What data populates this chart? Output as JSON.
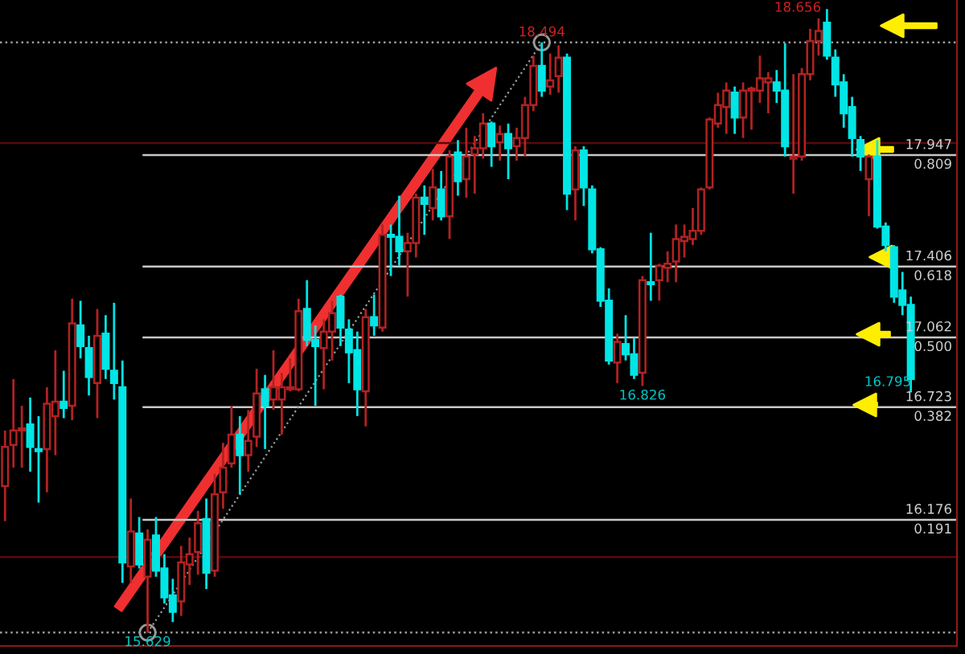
{
  "chart_data": {
    "type": "candlestick",
    "categories": [
      null,
      null,
      null,
      null,
      null,
      null,
      null,
      null,
      null,
      null,
      null,
      null,
      null,
      null,
      null,
      null,
      null,
      null,
      null,
      null,
      null,
      null,
      null,
      null,
      null,
      null,
      null,
      null,
      null,
      null,
      null,
      null,
      null,
      null,
      null,
      null,
      null,
      null,
      null,
      null,
      null,
      null,
      null,
      null,
      null,
      null,
      null,
      null,
      null,
      null,
      null,
      null,
      null,
      null,
      null,
      null,
      null,
      null,
      null,
      null,
      null,
      null,
      null,
      null,
      null,
      null,
      null,
      null,
      null,
      null,
      null,
      null,
      null,
      null,
      null,
      null,
      null,
      null,
      null,
      null,
      null,
      null,
      null,
      null,
      null,
      null,
      null,
      null,
      null,
      null,
      null,
      null,
      null,
      null,
      null,
      null,
      null,
      null,
      null,
      null,
      null,
      null,
      null,
      null,
      null,
      null,
      null,
      null,
      null
    ],
    "ohlc": [
      [
        16.34,
        16.61,
        16.17,
        16.53
      ],
      [
        16.54,
        16.86,
        16.43,
        16.61
      ],
      [
        16.61,
        16.73,
        16.43,
        16.62
      ],
      [
        16.64,
        16.77,
        16.41,
        16.53
      ],
      [
        16.52,
        16.68,
        16.26,
        16.51
      ],
      [
        16.52,
        16.82,
        16.31,
        16.74
      ],
      [
        16.68,
        17.0,
        16.49,
        16.75
      ],
      [
        16.75,
        16.9,
        16.67,
        16.72
      ],
      [
        16.73,
        17.25,
        16.66,
        17.13
      ],
      [
        17.12,
        17.24,
        16.96,
        17.02
      ],
      [
        17.01,
        17.07,
        16.78,
        16.87
      ],
      [
        16.84,
        17.2,
        16.67,
        17.07
      ],
      [
        17.08,
        17.17,
        16.86,
        16.91
      ],
      [
        16.9,
        17.23,
        16.76,
        16.84
      ],
      [
        16.82,
        16.95,
        15.87,
        15.97
      ],
      [
        15.95,
        16.28,
        15.87,
        16.12
      ],
      [
        16.11,
        16.19,
        15.94,
        15.96
      ],
      [
        15.9,
        16.13,
        15.629,
        16.08
      ],
      [
        16.1,
        16.19,
        15.9,
        15.93
      ],
      [
        15.94,
        16.01,
        15.77,
        15.8
      ],
      [
        15.81,
        15.89,
        15.68,
        15.73
      ],
      [
        15.78,
        16.05,
        15.71,
        15.97
      ],
      [
        15.96,
        16.09,
        15.86,
        16.01
      ],
      [
        16.02,
        16.22,
        15.91,
        16.16
      ],
      [
        16.18,
        16.28,
        15.84,
        15.92
      ],
      [
        15.93,
        16.4,
        15.9,
        16.3
      ],
      [
        16.31,
        16.55,
        16.23,
        16.43
      ],
      [
        16.45,
        16.73,
        16.43,
        16.59
      ],
      [
        16.59,
        16.68,
        16.3,
        16.49
      ],
      [
        16.49,
        16.71,
        16.41,
        16.56
      ],
      [
        16.58,
        16.91,
        16.53,
        16.79
      ],
      [
        16.81,
        16.88,
        16.52,
        16.73
      ],
      [
        16.76,
        17.0,
        16.71,
        16.82
      ],
      [
        16.76,
        16.89,
        16.59,
        16.82
      ],
      [
        16.81,
        16.96,
        16.8,
        16.82
      ],
      [
        16.81,
        17.25,
        16.8,
        17.19
      ],
      [
        17.2,
        17.34,
        17.02,
        17.05
      ],
      [
        17.05,
        17.12,
        16.73,
        17.02
      ],
      [
        17.01,
        17.15,
        16.81,
        17.09
      ],
      [
        17.09,
        17.24,
        16.95,
        17.18
      ],
      [
        17.26,
        17.27,
        17.02,
        17.11
      ],
      [
        17.1,
        17.15,
        16.84,
        16.99
      ],
      [
        17.0,
        17.09,
        16.68,
        16.81
      ],
      [
        16.8,
        17.2,
        16.63,
        17.16
      ],
      [
        17.16,
        17.27,
        17.07,
        17.12
      ],
      [
        17.11,
        17.61,
        17.09,
        17.56
      ],
      [
        17.56,
        17.61,
        17.36,
        17.55
      ],
      [
        17.55,
        17.75,
        17.41,
        17.48
      ],
      [
        17.48,
        17.57,
        17.26,
        17.52
      ],
      [
        17.52,
        17.76,
        17.45,
        17.74
      ],
      [
        17.74,
        17.8,
        17.56,
        17.71
      ],
      [
        17.69,
        17.88,
        17.63,
        17.79
      ],
      [
        17.78,
        17.87,
        17.63,
        17.65
      ],
      [
        17.65,
        17.97,
        17.54,
        17.94
      ],
      [
        17.96,
        18.02,
        17.75,
        17.82
      ],
      [
        17.83,
        18.08,
        17.74,
        17.94
      ],
      [
        17.95,
        18.04,
        17.76,
        17.98
      ],
      [
        17.98,
        18.15,
        17.93,
        18.1
      ],
      [
        18.1,
        18.11,
        17.89,
        17.99
      ],
      [
        18.01,
        18.09,
        17.92,
        18.05
      ],
      [
        18.05,
        18.1,
        17.83,
        17.98
      ],
      [
        17.99,
        18.08,
        17.92,
        18.03
      ],
      [
        18.03,
        18.23,
        17.94,
        18.19
      ],
      [
        18.19,
        18.43,
        18.16,
        18.38
      ],
      [
        18.38,
        18.494,
        18.23,
        18.26
      ],
      [
        18.28,
        18.44,
        18.24,
        18.31
      ],
      [
        18.33,
        18.48,
        18.25,
        18.42
      ],
      [
        18.42,
        18.44,
        17.68,
        17.76
      ],
      [
        17.78,
        17.99,
        17.63,
        17.97
      ],
      [
        17.97,
        17.99,
        17.7,
        17.79
      ],
      [
        17.78,
        17.8,
        17.47,
        17.49
      ],
      [
        17.49,
        17.5,
        17.21,
        17.24
      ],
      [
        17.24,
        17.3,
        16.93,
        16.95
      ],
      [
        16.94,
        17.08,
        16.84,
        17.04
      ],
      [
        17.03,
        17.17,
        16.95,
        16.98
      ],
      [
        16.98,
        17.06,
        16.86,
        16.88
      ],
      [
        16.89,
        17.36,
        16.826,
        17.34
      ],
      [
        17.33,
        17.57,
        17.24,
        17.32
      ],
      [
        17.34,
        17.42,
        17.24,
        17.41
      ],
      [
        17.4,
        17.48,
        17.33,
        17.42
      ],
      [
        17.43,
        17.61,
        17.33,
        17.54
      ],
      [
        17.53,
        17.61,
        17.45,
        17.55
      ],
      [
        17.54,
        17.69,
        17.51,
        17.58
      ],
      [
        17.58,
        17.79,
        17.56,
        17.78
      ],
      [
        17.79,
        18.13,
        17.78,
        18.12
      ],
      [
        18.1,
        18.25,
        18.08,
        18.19
      ],
      [
        18.18,
        18.3,
        18.05,
        18.26
      ],
      [
        18.25,
        18.28,
        18.05,
        18.13
      ],
      [
        18.13,
        18.3,
        18.03,
        18.26
      ],
      [
        18.26,
        18.28,
        18.07,
        18.27
      ],
      [
        18.26,
        18.43,
        18.2,
        18.32
      ],
      [
        18.3,
        18.35,
        18.15,
        18.32
      ],
      [
        18.3,
        18.36,
        18.2,
        18.26
      ],
      [
        18.26,
        18.49,
        17.94,
        17.99
      ],
      [
        17.93,
        18.34,
        17.76,
        17.94
      ],
      [
        17.94,
        18.37,
        17.92,
        18.34
      ],
      [
        18.34,
        18.56,
        18.31,
        18.5
      ],
      [
        18.5,
        18.61,
        18.43,
        18.55
      ],
      [
        18.59,
        18.656,
        18.41,
        18.43
      ],
      [
        18.42,
        18.46,
        18.23,
        18.29
      ],
      [
        18.3,
        18.34,
        18.08,
        18.15
      ],
      [
        18.18,
        18.23,
        17.94,
        18.03
      ],
      [
        18.02,
        18.04,
        17.87,
        17.94
      ],
      [
        17.83,
        17.95,
        17.65,
        17.94
      ],
      [
        17.94,
        18.02,
        17.59,
        17.6
      ],
      [
        17.6,
        17.62,
        17.48,
        17.51
      ],
      [
        17.5,
        17.51,
        17.23,
        17.26
      ],
      [
        17.29,
        17.38,
        17.17,
        17.22
      ],
      [
        17.22,
        17.26,
        16.795,
        16.86
      ]
    ],
    "colors": [
      "#b22222",
      "#b22222",
      "#b22222",
      "#00e5e5",
      "#00e5e5",
      "#b22222",
      "#b22222",
      "#00e5e5",
      "#b22222",
      "#00e5e5",
      "#00e5e5",
      "#b22222",
      "#00e5e5",
      "#00e5e5",
      "#00e5e5",
      "#b22222",
      "#00e5e5",
      "#b22222",
      "#00e5e5",
      "#00e5e5",
      "#00e5e5",
      "#b22222",
      "#b22222",
      "#b22222",
      "#00e5e5",
      "#b22222",
      "#b22222",
      "#b22222",
      "#00e5e5",
      "#b22222",
      "#b22222",
      "#00e5e5",
      "#b22222",
      "#b22222",
      "#b22222",
      "#b22222",
      "#00e5e5",
      "#00e5e5",
      "#b22222",
      "#b22222",
      "#00e5e5",
      "#00e5e5",
      "#00e5e5",
      "#b22222",
      "#00e5e5",
      "#b22222",
      "#00e5e5",
      "#00e5e5",
      "#b22222",
      "#b22222",
      "#00e5e5",
      "#b22222",
      "#00e5e5",
      "#b22222",
      "#00e5e5",
      "#b22222",
      "#b22222",
      "#b22222",
      "#00e5e5",
      "#b22222",
      "#00e5e5",
      "#b22222",
      "#b22222",
      "#b22222",
      "#00e5e5",
      "#b22222",
      "#b22222",
      "#00e5e5",
      "#b22222",
      "#00e5e5",
      "#00e5e5",
      "#00e5e5",
      "#00e5e5",
      "#b22222",
      "#00e5e5",
      "#00e5e5",
      "#b22222",
      "#00e5e5",
      "#b22222",
      "#b22222",
      "#b22222",
      "#b22222",
      "#b22222",
      "#b22222",
      "#b22222",
      "#b22222",
      "#b22222",
      "#00e5e5",
      "#b22222",
      "#b22222",
      "#b22222",
      "#b22222",
      "#00e5e5",
      "#00e5e5",
      "#b22222",
      "#b22222",
      "#b22222",
      "#b22222",
      "#00e5e5",
      "#00e5e5",
      "#00e5e5",
      "#00e5e5",
      "#00e5e5",
      "#b22222",
      "#00e5e5",
      "#00e5e5",
      "#00e5e5",
      "#00e5e5",
      "#00e5e5"
    ],
    "series": [
      {
        "type": "line",
        "color": "#9a9a9a",
        "line_style": "dotted",
        "marker": "circle",
        "values": [
          null,
          null,
          null,
          null,
          null,
          null,
          null,
          null,
          null,
          null,
          null,
          null,
          null,
          null,
          null,
          null,
          null,
          15.629,
          null,
          null,
          null,
          null,
          null,
          null,
          null,
          null,
          null,
          null,
          null,
          null,
          null,
          null,
          null,
          null,
          null,
          null,
          null,
          null,
          null,
          null,
          null,
          null,
          null,
          null,
          null,
          null,
          null,
          null,
          null,
          null,
          null,
          null,
          null,
          null,
          null,
          null,
          null,
          null,
          null,
          null,
          null,
          null,
          null,
          null,
          18.494,
          null,
          null,
          null,
          null,
          null,
          null,
          null,
          null,
          null,
          null,
          null,
          null,
          null,
          null,
          null,
          null,
          null,
          null,
          null,
          null,
          null,
          null,
          null,
          null,
          null,
          null,
          null,
          null,
          null,
          null,
          null,
          null,
          null,
          null,
          null,
          null,
          null,
          null,
          null,
          null,
          null,
          null,
          null,
          null
        ]
      }
    ],
    "ylim": [
      15.564,
      18.7
    ],
    "grid": false,
    "ref_lines": [
      {
        "axis": "y",
        "value": 18.494,
        "line_style": "dotted",
        "color": "#9a9a9a"
      },
      {
        "axis": "y",
        "value": 15.629,
        "line_style": "dotted",
        "color": "#9a9a9a"
      },
      {
        "axis": "y",
        "value": 18.006,
        "color": "#5a0a0a"
      },
      {
        "axis": "y",
        "value": 15.996,
        "color": "#5a0a0a"
      },
      {
        "axis": "y",
        "value": 17.947,
        "label": "17.947",
        "color": "#c8c8c8"
      },
      {
        "axis": "y",
        "value": 17.406,
        "label": "17.406",
        "color": "#c8c8c8"
      },
      {
        "axis": "y",
        "value": 17.062,
        "label": "17.062",
        "color": "#c8c8c8"
      },
      {
        "axis": "y",
        "value": 16.723,
        "label": "16.723",
        "color": "#c8c8c8"
      },
      {
        "axis": "y",
        "value": 16.176,
        "label": "16.176",
        "color": "#c8c8c8"
      }
    ],
    "annotations": [
      {
        "text": "18.494",
        "y": 18.494
      },
      {
        "text": "15.629",
        "y": 15.629
      },
      {
        "text": "16.826",
        "y": 16.826
      },
      "18.656",
      "16.795",
      {
        "text": "0.809",
        "y": 17.947
      },
      {
        "text": "0.618",
        "y": 17.406
      },
      {
        "text": "0.500",
        "y": 17.062
      },
      {
        "text": "0.382",
        "y": 16.723
      },
      {
        "text": "0.191",
        "y": 16.176
      }
    ]
  }
}
